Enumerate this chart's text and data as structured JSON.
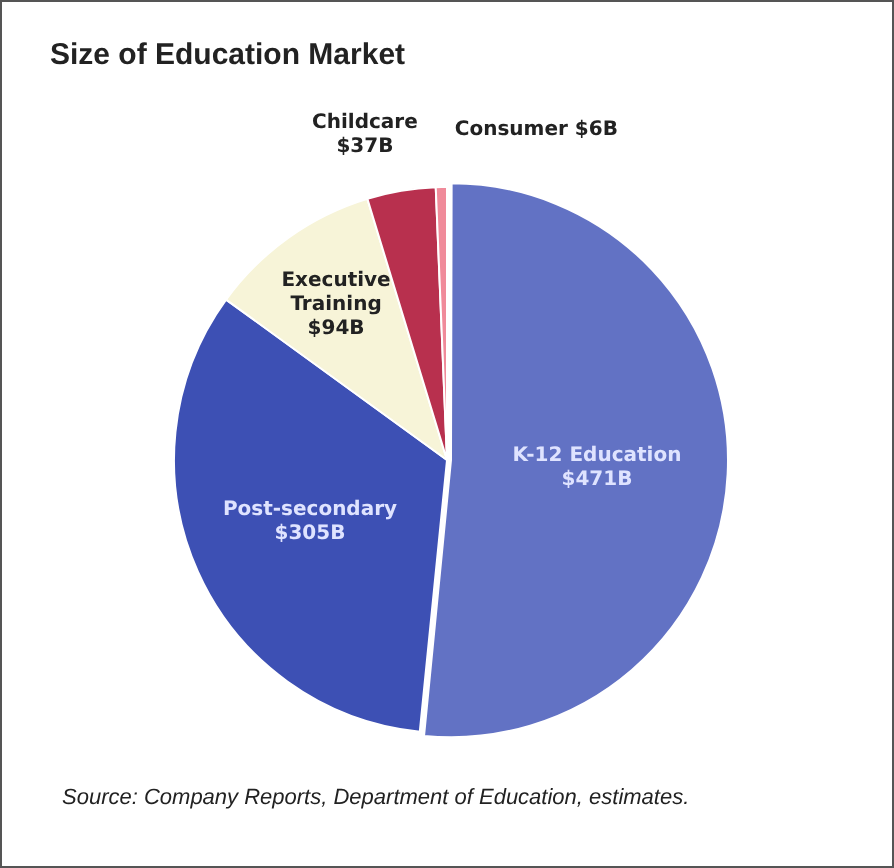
{
  "chart_data": {
    "type": "pie",
    "title": "Size of Education Market",
    "categories": [
      "K-12 Education",
      "Post-secondary",
      "Executive Training",
      "Childcare",
      "Consumer"
    ],
    "values": [
      471,
      305,
      94,
      37,
      6
    ],
    "value_labels": [
      "$471B",
      "$305B",
      "$94B",
      "$37B",
      "$6B"
    ],
    "colors": [
      "#6272c4",
      "#3d50b4",
      "#f7f4d8",
      "#b8304e",
      "#f08a9a"
    ],
    "legend": false,
    "annotations": [
      "Source: Company Reports, Department of Education, estimates."
    ]
  }
}
